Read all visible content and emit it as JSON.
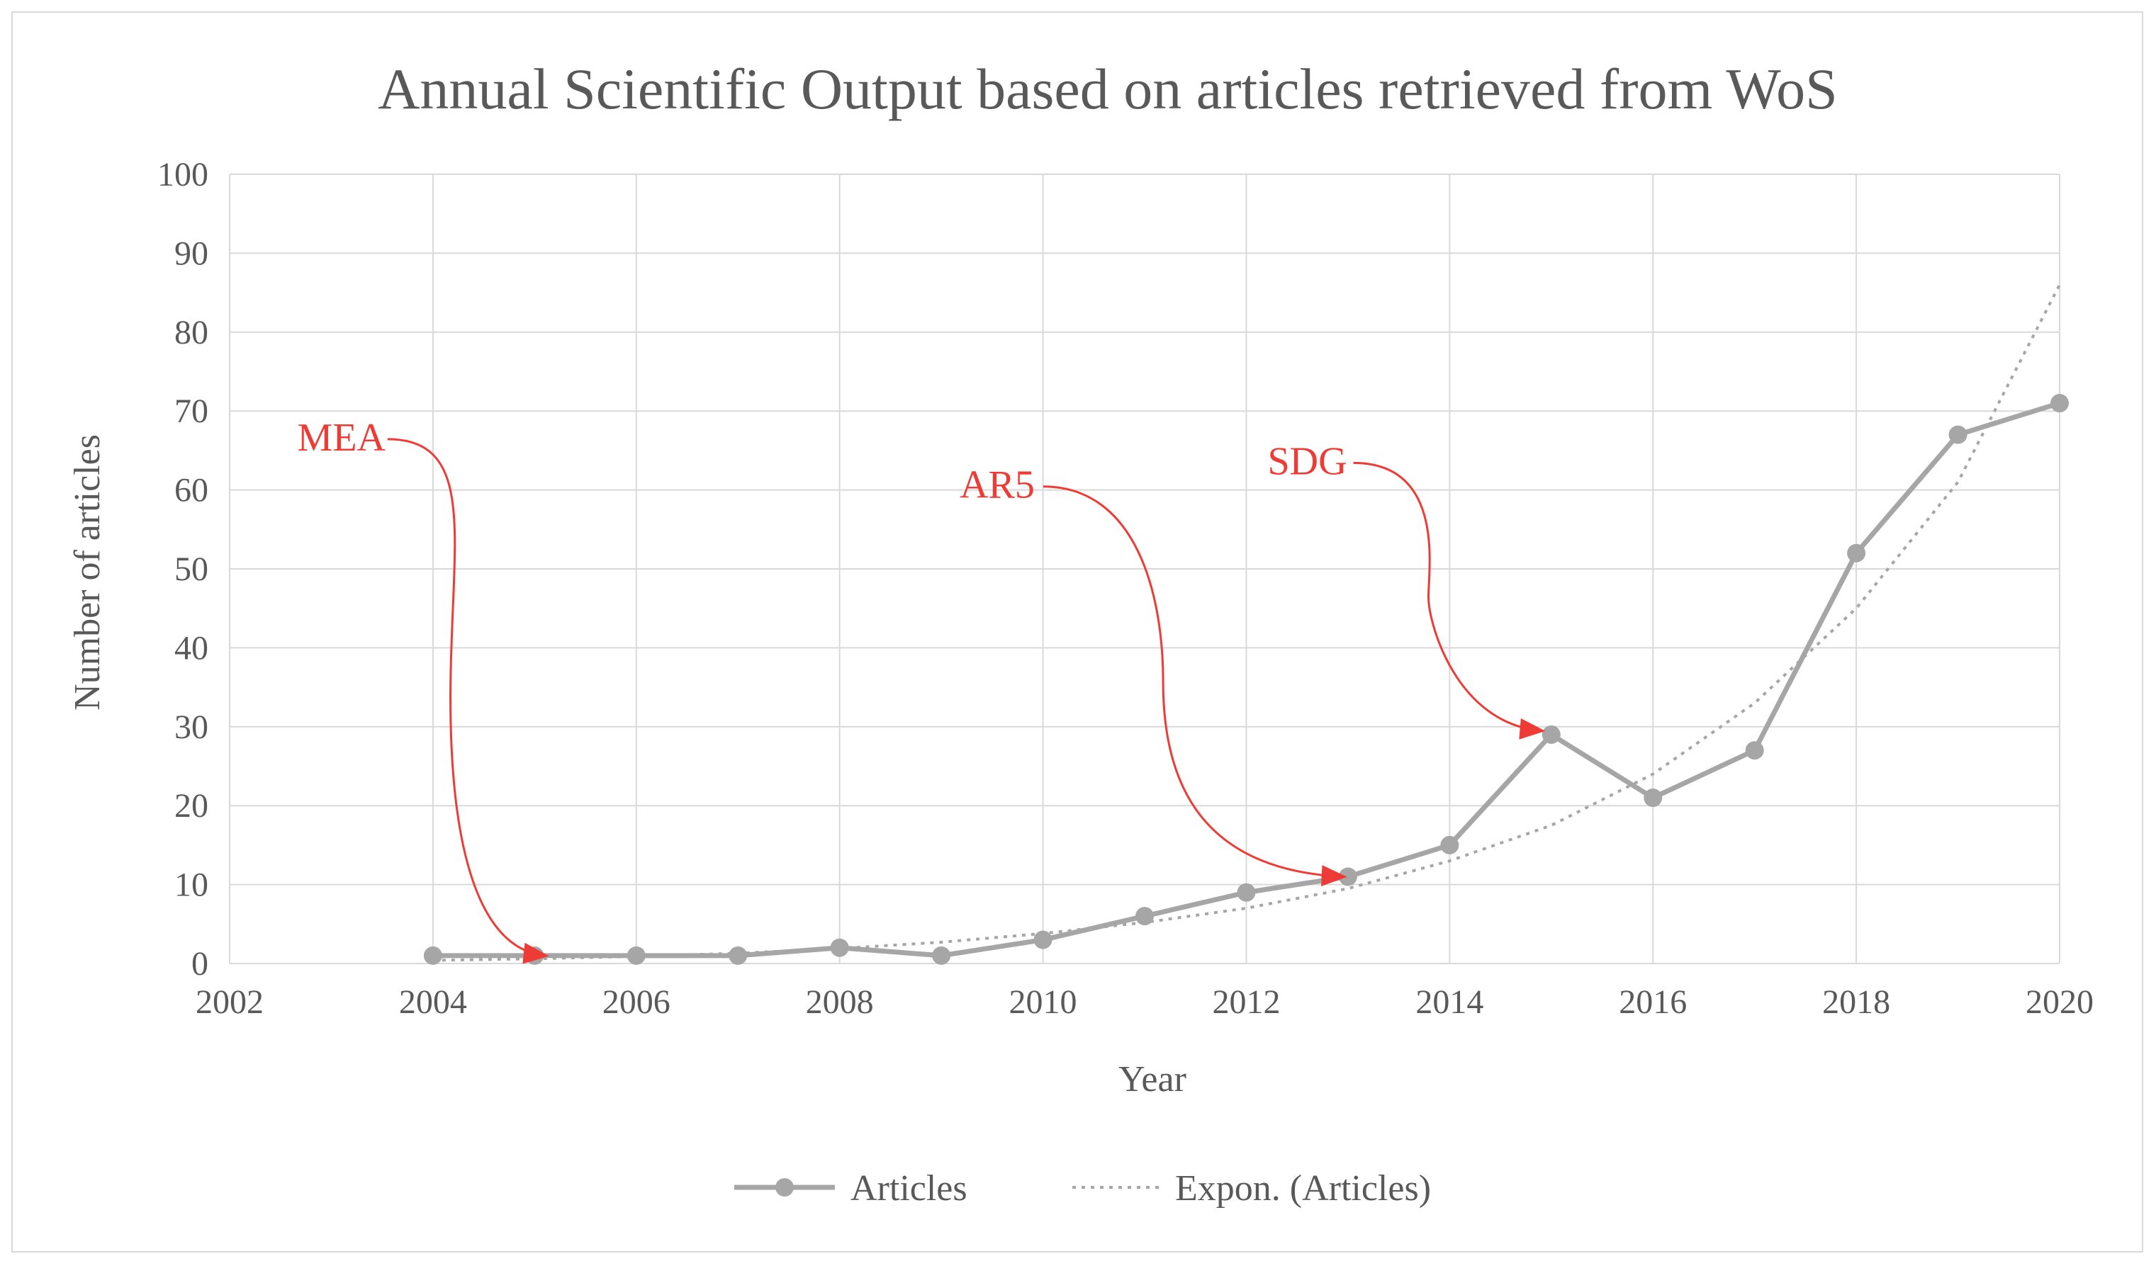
{
  "chart_data": {
    "type": "line",
    "title": "Annual Scientific Output based on articles retrieved from WoS",
    "xlabel": "Year",
    "ylabel": "Number of articles",
    "xlim": [
      2002,
      2020
    ],
    "ylim": [
      0,
      100
    ],
    "xticks": [
      2002,
      2004,
      2006,
      2008,
      2010,
      2012,
      2014,
      2016,
      2018,
      2020
    ],
    "yticks": [
      0,
      10,
      20,
      30,
      40,
      50,
      60,
      70,
      80,
      90,
      100
    ],
    "grid": true,
    "legend_position": "bottom",
    "series": [
      {
        "name": "Articles",
        "style": "line-with-markers",
        "color": "#a6a6a6",
        "points": [
          {
            "x": 2004,
            "y": 1
          },
          {
            "x": 2005,
            "y": 1
          },
          {
            "x": 2006,
            "y": 1
          },
          {
            "x": 2007,
            "y": 1
          },
          {
            "x": 2008,
            "y": 2
          },
          {
            "x": 2009,
            "y": 1
          },
          {
            "x": 2010,
            "y": 3
          },
          {
            "x": 2011,
            "y": 6
          },
          {
            "x": 2012,
            "y": 9
          },
          {
            "x": 2013,
            "y": 11
          },
          {
            "x": 2014,
            "y": 15
          },
          {
            "x": 2015,
            "y": 29
          },
          {
            "x": 2016,
            "y": 21
          },
          {
            "x": 2017,
            "y": 27
          },
          {
            "x": 2018,
            "y": 52
          },
          {
            "x": 2019,
            "y": 67
          },
          {
            "x": 2020,
            "y": 71
          }
        ]
      },
      {
        "name": "Expon. (Articles)",
        "style": "dotted-trendline",
        "color": "#a6a6a6",
        "points": [
          {
            "x": 2004,
            "y": 0.4
          },
          {
            "x": 2005,
            "y": 0.6
          },
          {
            "x": 2006,
            "y": 0.9
          },
          {
            "x": 2007,
            "y": 1.3
          },
          {
            "x": 2008,
            "y": 1.9
          },
          {
            "x": 2009,
            "y": 2.7
          },
          {
            "x": 2010,
            "y": 3.8
          },
          {
            "x": 2011,
            "y": 5.2
          },
          {
            "x": 2012,
            "y": 7.0
          },
          {
            "x": 2013,
            "y": 9.5
          },
          {
            "x": 2014,
            "y": 13
          },
          {
            "x": 2015,
            "y": 17.5
          },
          {
            "x": 2016,
            "y": 24
          },
          {
            "x": 2017,
            "y": 33
          },
          {
            "x": 2018,
            "y": 45
          },
          {
            "x": 2019,
            "y": 61
          },
          {
            "x": 2020,
            "y": 86
          }
        ]
      }
    ],
    "annotations": [
      {
        "label": "MEA",
        "label_x": 2003.1,
        "label_y": 65,
        "target_x": 2005.1,
        "target_y": 1,
        "color": "#ee3b35"
      },
      {
        "label": "AR5",
        "label_x": 2009.55,
        "label_y": 59,
        "target_x": 2012.95,
        "target_y": 11,
        "color": "#ee3b35"
      },
      {
        "label": "SDG",
        "label_x": 2012.6,
        "label_y": 62,
        "target_x": 2014.9,
        "target_y": 29.5,
        "color": "#ee3b35"
      }
    ]
  }
}
